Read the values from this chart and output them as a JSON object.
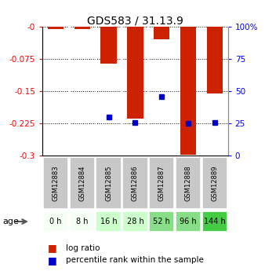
{
  "title": "GDS583 / 31.13.9",
  "samples": [
    "GSM12883",
    "GSM12884",
    "GSM12885",
    "GSM12886",
    "GSM12887",
    "GSM12888",
    "GSM12889"
  ],
  "ages": [
    "0 h",
    "8 h",
    "16 h",
    "28 h",
    "52 h",
    "96 h",
    "144 h"
  ],
  "log_ratios": [
    0.0,
    0.0,
    -0.085,
    -0.213,
    -0.028,
    -0.297,
    -0.155
  ],
  "percentile_ranks": [
    null,
    null,
    30,
    26,
    46,
    25,
    26
  ],
  "ylim_left": [
    -0.3,
    0.0
  ],
  "ylim_right": [
    0,
    100
  ],
  "yticks_left": [
    0.0,
    -0.075,
    -0.15,
    -0.225,
    -0.3
  ],
  "ytick_labels_left": [
    "-0",
    "-0.075",
    "-0.15",
    "-0.225",
    "-0.3"
  ],
  "yticks_right": [
    0,
    25,
    50,
    75,
    100
  ],
  "ytick_labels_right": [
    "0",
    "25",
    "50",
    "75",
    "100%"
  ],
  "bar_color": "#cc2200",
  "dot_color": "#0000cc",
  "age_bg_colors": [
    "#f5fff5",
    "#f5fff5",
    "#ccffcc",
    "#ccffcc",
    "#88dd88",
    "#88dd88",
    "#44cc44"
  ],
  "sample_bg_color": "#c8c8c8",
  "legend_log_ratio": "log ratio",
  "legend_percentile": "percentile rank within the sample",
  "bar_width": 0.6,
  "tiny_bar": 0.004
}
